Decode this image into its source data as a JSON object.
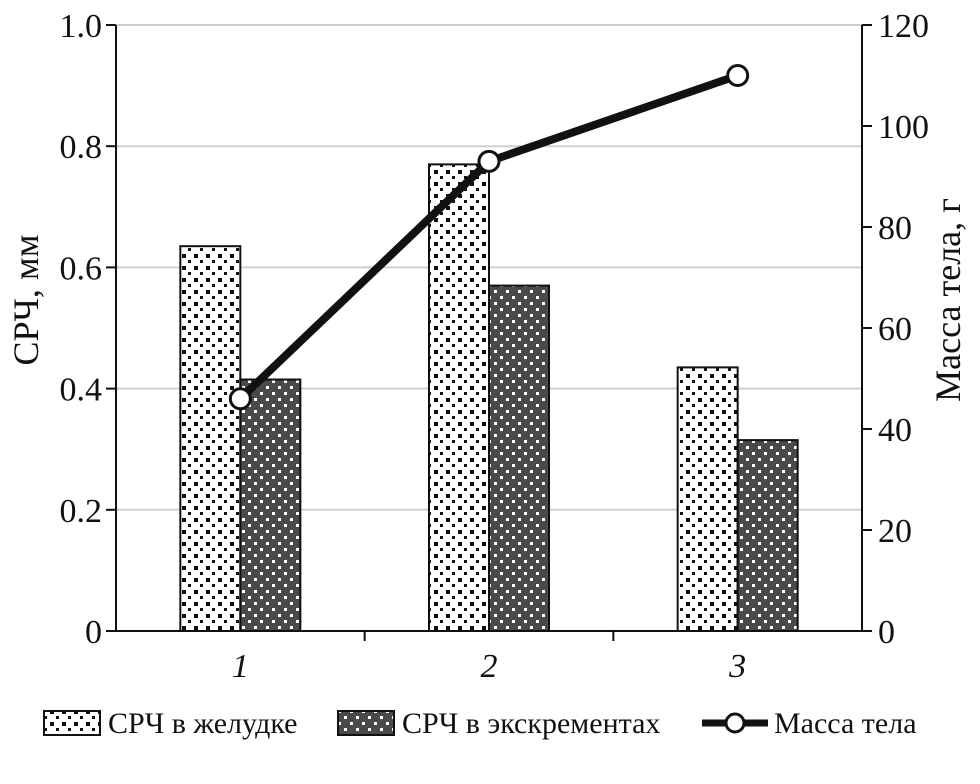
{
  "chart_data": {
    "type": "bar",
    "categories": [
      "1",
      "2",
      "3"
    ],
    "series": [
      {
        "name": "СРЧ в желудке",
        "axis": "left",
        "kind": "bar",
        "pattern": "dots-on-white",
        "values": [
          0.635,
          0.77,
          0.435
        ]
      },
      {
        "name": "СРЧ в экскрементах",
        "axis": "left",
        "kind": "bar",
        "pattern": "dots-on-dark",
        "values": [
          0.415,
          0.57,
          0.315
        ]
      },
      {
        "name": "Масса тела",
        "axis": "right",
        "kind": "line",
        "marker": "open-circle",
        "values": [
          46,
          93,
          110
        ]
      }
    ],
    "ylabel": "СРЧ, мм",
    "y2label": "Масса тела, г",
    "ylim": [
      0,
      1.0
    ],
    "y2lim": [
      0,
      120
    ],
    "yticks": [
      "0",
      "0.2",
      "0.4",
      "0.6",
      "0.8",
      "1.0"
    ],
    "y2ticks": [
      "0",
      "20",
      "40",
      "60",
      "80",
      "100",
      "120"
    ],
    "yticks_values": [
      0,
      0.2,
      0.4,
      0.6,
      0.8,
      1.0
    ],
    "y2ticks_values": [
      0,
      20,
      40,
      60,
      80,
      100,
      120
    ],
    "grid": true,
    "legend_position": "bottom",
    "colors": {
      "bar_light": "#ffffff",
      "bar_dark": "#4a4a4a",
      "line": "#111111",
      "grid": "#cfcfcf"
    }
  }
}
